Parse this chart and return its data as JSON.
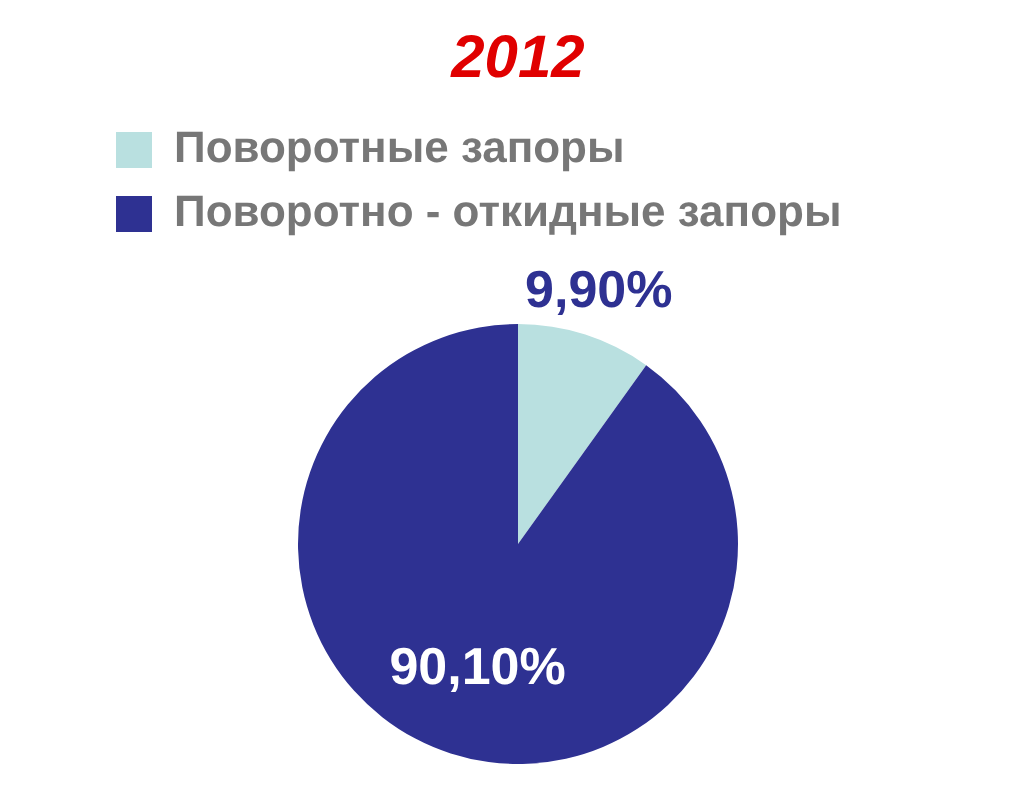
{
  "chart_data": {
    "type": "pie",
    "title": "2012",
    "categories": [
      "Поворотные запоры",
      "Поворотно - откидные запоры"
    ],
    "values": [
      9.9,
      90.1
    ],
    "colors": [
      "#b9e0e0",
      "#2e3192"
    ],
    "value_labels": [
      "9,90%",
      "90,10%"
    ],
    "legend": "top"
  }
}
